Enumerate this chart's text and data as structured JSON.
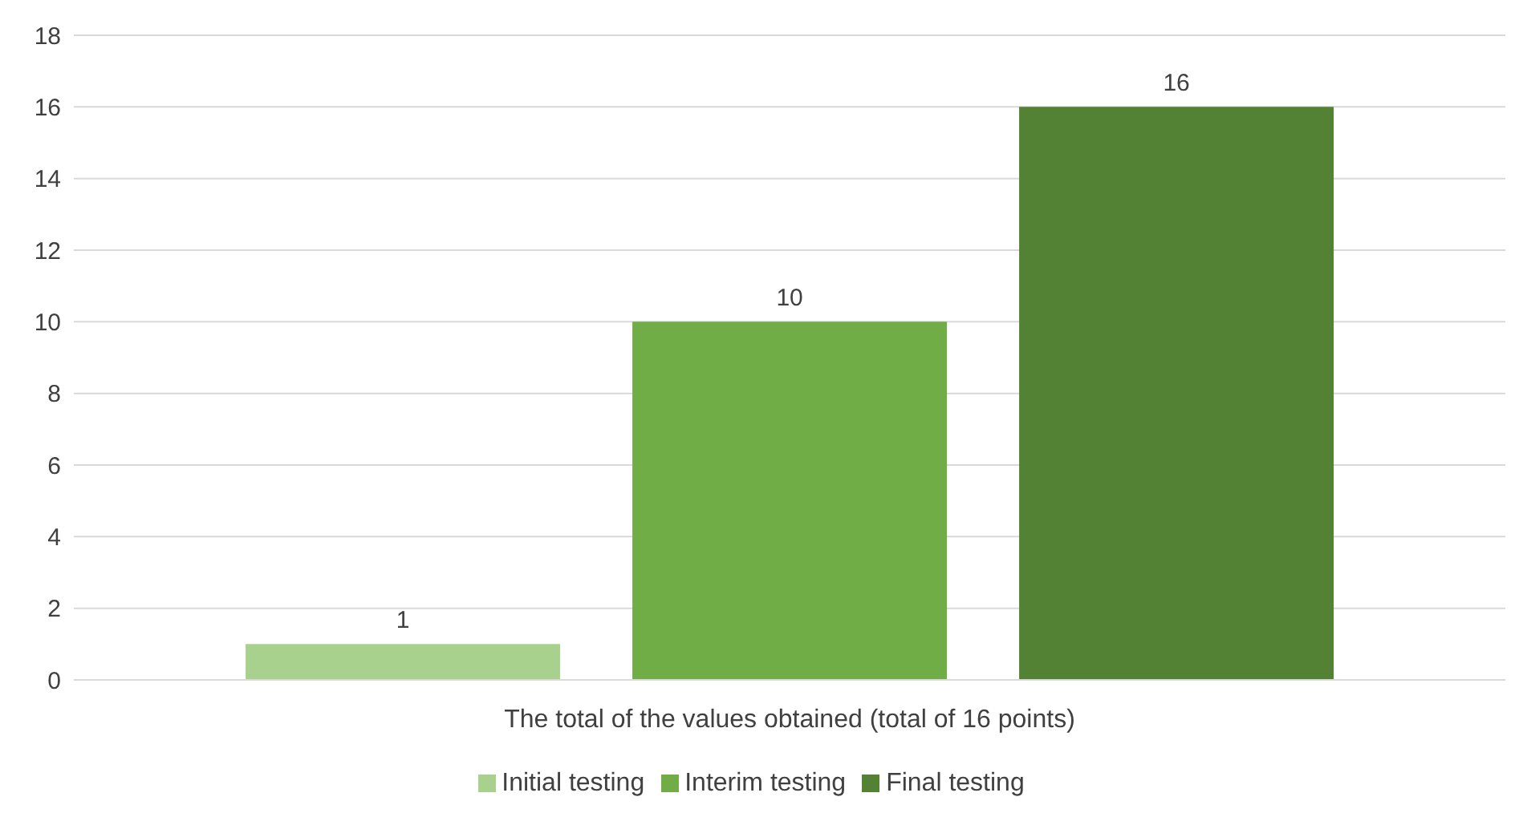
{
  "chart_data": {
    "type": "bar",
    "categories": [
      "The total of the values obtained (total of 16 points)"
    ],
    "series": [
      {
        "name": "Initial testing",
        "color": "#a9d18e",
        "values": [
          1
        ]
      },
      {
        "name": "Interim testing",
        "color": "#70ad47",
        "values": [
          10
        ]
      },
      {
        "name": "Final testing",
        "color": "#548235",
        "values": [
          16
        ]
      }
    ],
    "ylim": [
      0,
      18
    ],
    "yticks": [
      0,
      2,
      4,
      6,
      8,
      10,
      12,
      14,
      16,
      18
    ],
    "grid": "y",
    "legend": "bottom",
    "data_labels": true
  }
}
